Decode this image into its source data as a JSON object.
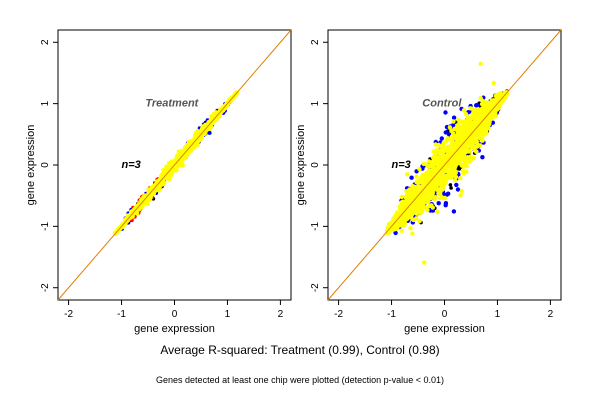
{
  "figure": {
    "caption": "Average R-squared: Treatment (0.99), Control (0.98)",
    "footnote": "Genes detected at least one chip were plotted (detection p-value < 0.01)"
  },
  "colors": {
    "points_primary": "#ffff00",
    "points_secondary": "#0000ff",
    "points_tertiary": "#ff0000",
    "points_outline": "#000000",
    "diagonal_line": "#e08000",
    "frame": "#000000"
  },
  "chart_data": [
    {
      "type": "scatter",
      "title": "Treatment",
      "annotation": "n=3",
      "xlabel": "gene expression",
      "ylabel": "gene expression",
      "xlim": [
        -2.2,
        2.2
      ],
      "ylim": [
        -2.2,
        2.2
      ],
      "xticks": [
        -2,
        -1,
        0,
        1,
        2
      ],
      "yticks": [
        -2,
        -1,
        0,
        1,
        2
      ],
      "x_tick_labels": [
        "-2",
        "-1",
        "0",
        "1",
        "2"
      ],
      "y_tick_labels": [
        "-2",
        "-1",
        "0",
        "1",
        "2"
      ],
      "reference_line": "y = x",
      "cloud": {
        "x_range": [
          -1.12,
          1.18
        ],
        "spread": 0.05
      },
      "series": [
        {
          "color": "yellow"
        },
        {
          "color": "blue"
        },
        {
          "color": "red"
        }
      ]
    },
    {
      "type": "scatter",
      "title": "Control",
      "annotation": "n=3",
      "xlabel": "gene expression",
      "ylabel": "gene expression",
      "xlim": [
        -2.2,
        2.2
      ],
      "ylim": [
        -2.2,
        2.2
      ],
      "xticks": [
        -2,
        -1,
        0,
        1,
        2
      ],
      "yticks": [
        -2,
        -1,
        0,
        1,
        2
      ],
      "x_tick_labels": [
        "-2",
        "-1",
        "0",
        "1",
        "2"
      ],
      "y_tick_labels": [
        "-2",
        "-1",
        "0",
        "1",
        "2"
      ],
      "reference_line": "y = x",
      "cloud": {
        "x_range": [
          -1.08,
          1.18
        ],
        "spread": 0.2
      },
      "series": [
        {
          "color": "yellow"
        },
        {
          "color": "blue"
        }
      ]
    }
  ]
}
